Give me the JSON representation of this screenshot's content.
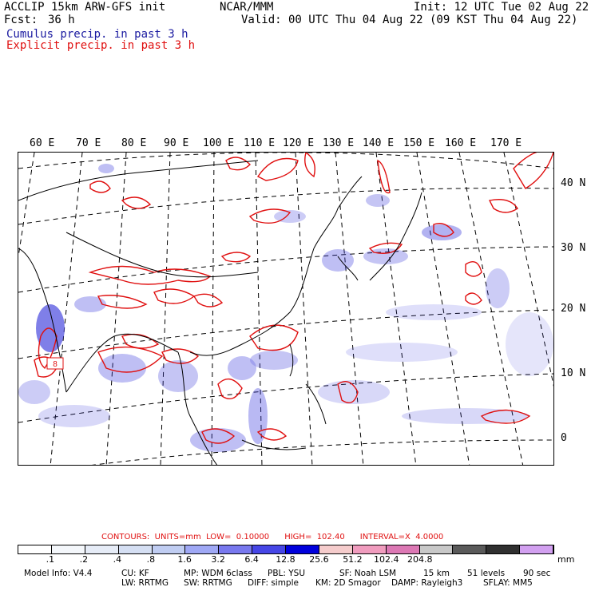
{
  "header": {
    "model_line": "ACCLIP 15km ARW-GFS init",
    "fcst_label": "Fcst:",
    "fcst_value": "36 h",
    "center": "NCAR/MMM",
    "init": "Init: 12 UTC Tue 02 Aug 22",
    "valid": "Valid: 00 UTC Thu 04 Aug 22 (09 KST Thu 04 Aug 22)",
    "cumulus": "Cumulus precip. in past 3 h",
    "explicit": "Explicit precip. in past 3 h"
  },
  "map": {
    "lon_labels": [
      "60 E",
      "70 E",
      "80 E",
      "90 E",
      "100 E",
      "110 E",
      "120 E",
      "130 E",
      "140 E",
      "150 E",
      "160 E",
      "170 E"
    ],
    "lat_labels": [
      "40 N",
      "30 N",
      "20 N",
      "10 N",
      "0"
    ],
    "marker_label": "8",
    "colors": {
      "cumulus": "#3c3cdc",
      "explicit": "#e01010",
      "coast": "#000000",
      "grid": "#000000"
    }
  },
  "contours_line": "CONTOURS:  UNITS=mm  LOW=  0.10000      HIGH=  102.40      INTERVAL=X  4.0000",
  "colorbar": {
    "colors": [
      "#ffffff",
      "#f4f7fb",
      "#e6ecf7",
      "#d5dff3",
      "#c0cdf2",
      "#9fa8f5",
      "#7878ee",
      "#4646e6",
      "#0000dc",
      "#f5cccc",
      "#f09cbe",
      "#dc78b4",
      "#c8c8c8",
      "#5a5a5a",
      "#303030",
      "#d2a0f0"
    ],
    "ticks": [
      ".1",
      ".2",
      ".4",
      ".8",
      "1.6",
      "3.2",
      "6.4",
      "12.8",
      "25.6",
      "51.2",
      "102.4",
      "204.8"
    ],
    "unit": "mm"
  },
  "model_info": {
    "line1": [
      "Model Info: V4.4",
      "CU: KF",
      "MP: WDM 6class",
      "PBL: YSU",
      "SF: Noah LSM",
      "15 km",
      "51 levels",
      "90 sec"
    ],
    "line2": [
      "LW: RRTMG",
      "SW: RRTMG",
      "DIFF: simple",
      "KM: 2D Smagor",
      "DAMP: Rayleigh3",
      "SFLAY: MM5"
    ]
  }
}
